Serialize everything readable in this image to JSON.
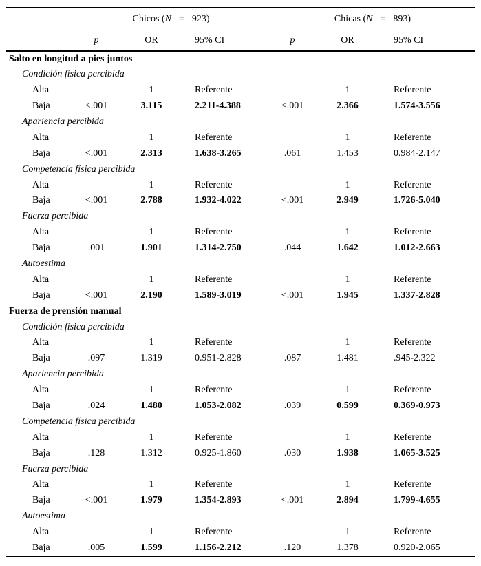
{
  "colors": {
    "background": "#ffffff",
    "text": "#000000",
    "rule": "#000000"
  },
  "header": {
    "groups": [
      {
        "prefix": "Chicos (",
        "n": "N",
        "eq": "=",
        "value": "923)"
      },
      {
        "prefix": "Chicas (",
        "n": "N",
        "eq": "=",
        "value": "893)"
      }
    ],
    "columns": [
      "p",
      "OR",
      "95% CI",
      "p",
      "OR",
      "95% CI"
    ]
  },
  "rows": [
    {
      "type": "section",
      "label": "Salto en longitud a pies juntos"
    },
    {
      "type": "subsection",
      "label": "Condición física percibida"
    },
    {
      "type": "data",
      "label": "Alta",
      "cells": [
        "",
        "1",
        "Referente",
        "",
        "1",
        "Referente"
      ],
      "bold": [
        false,
        false,
        false,
        false,
        false,
        false
      ]
    },
    {
      "type": "data",
      "label": "Baja",
      "cells": [
        "<.001",
        "3.115",
        "2.211-4.388",
        "<.001",
        "2.366",
        "1.574-3.556"
      ],
      "bold": [
        false,
        true,
        true,
        false,
        true,
        true
      ]
    },
    {
      "type": "subsection",
      "label": "Apariencia percibida"
    },
    {
      "type": "data",
      "label": "Alta",
      "cells": [
        "",
        "1",
        "Referente",
        "",
        "1",
        "Referente"
      ],
      "bold": [
        false,
        false,
        false,
        false,
        false,
        false
      ]
    },
    {
      "type": "data",
      "label": "Baja",
      "cells": [
        "<.001",
        "2.313",
        "1.638-3.265",
        ".061",
        "1.453",
        "0.984-2.147"
      ],
      "bold": [
        false,
        true,
        true,
        false,
        false,
        false
      ]
    },
    {
      "type": "subsection",
      "label": "Competencia física percibida"
    },
    {
      "type": "data",
      "label": "Alta",
      "cells": [
        "",
        "1",
        "Referente",
        "",
        "1",
        "Referente"
      ],
      "bold": [
        false,
        false,
        false,
        false,
        false,
        false
      ]
    },
    {
      "type": "data",
      "label": "Baja",
      "cells": [
        "<.001",
        "2.788",
        "1.932-4.022",
        "<.001",
        "2.949",
        "1.726-5.040"
      ],
      "bold": [
        false,
        true,
        true,
        false,
        true,
        true
      ]
    },
    {
      "type": "subsection",
      "label": "Fuerza percibida"
    },
    {
      "type": "data",
      "label": "Alta",
      "cells": [
        "",
        "1",
        "Referente",
        "",
        "1",
        "Referente"
      ],
      "bold": [
        false,
        false,
        false,
        false,
        false,
        false
      ]
    },
    {
      "type": "data",
      "label": "Baja",
      "cells": [
        ".001",
        "1.901",
        "1.314-2.750",
        ".044",
        "1.642",
        "1.012-2.663"
      ],
      "bold": [
        false,
        true,
        true,
        false,
        true,
        true
      ]
    },
    {
      "type": "subsection",
      "label": "Autoestima"
    },
    {
      "type": "data",
      "label": "Alta",
      "cells": [
        "",
        "1",
        "Referente",
        "",
        "1",
        "Referente"
      ],
      "bold": [
        false,
        false,
        false,
        false,
        false,
        false
      ]
    },
    {
      "type": "data",
      "label": "Baja",
      "cells": [
        "<.001",
        "2.190",
        "1.589-3.019",
        "<.001",
        "1.945",
        "1.337-2.828"
      ],
      "bold": [
        false,
        true,
        true,
        false,
        true,
        true
      ]
    },
    {
      "type": "section",
      "label": "Fuerza de prensión manual"
    },
    {
      "type": "subsection",
      "label": "Condición física percibida"
    },
    {
      "type": "data",
      "label": "Alta",
      "cells": [
        "",
        "1",
        "Referente",
        "",
        "1",
        "Referente"
      ],
      "bold": [
        false,
        false,
        false,
        false,
        false,
        false
      ]
    },
    {
      "type": "data",
      "label": "Baja",
      "cells": [
        ".097",
        "1.319",
        "0.951-2.828",
        ".087",
        "1.481",
        ".945-2.322"
      ],
      "bold": [
        false,
        false,
        false,
        false,
        false,
        false
      ]
    },
    {
      "type": "subsection",
      "label": "Apariencia percibida"
    },
    {
      "type": "data",
      "label": "Alta",
      "cells": [
        "",
        "1",
        "Referente",
        "",
        "1",
        "Referente"
      ],
      "bold": [
        false,
        false,
        false,
        false,
        false,
        false
      ]
    },
    {
      "type": "data",
      "label": "Baja",
      "cells": [
        ".024",
        "1.480",
        "1.053-2.082",
        ".039",
        "0.599",
        "0.369-0.973"
      ],
      "bold": [
        false,
        true,
        true,
        false,
        true,
        true
      ]
    },
    {
      "type": "subsection",
      "label": "Competencia física percibida"
    },
    {
      "type": "data",
      "label": "Alta",
      "cells": [
        "",
        "1",
        "Referente",
        "",
        "1",
        "Referente"
      ],
      "bold": [
        false,
        false,
        false,
        false,
        false,
        false
      ]
    },
    {
      "type": "data",
      "label": "Baja",
      "cells": [
        ".128",
        "1.312",
        "0.925-1.860",
        ".030",
        "1.938",
        "1.065-3.525"
      ],
      "bold": [
        false,
        false,
        false,
        false,
        true,
        true
      ]
    },
    {
      "type": "subsection",
      "label": "Fuerza percibida"
    },
    {
      "type": "data",
      "label": "Alta",
      "cells": [
        "",
        "1",
        "Referente",
        "",
        "1",
        "Referente"
      ],
      "bold": [
        false,
        false,
        false,
        false,
        false,
        false
      ]
    },
    {
      "type": "data",
      "label": "Baja",
      "cells": [
        "<.001",
        "1.979",
        "1.354-2.893",
        "<.001",
        "2.894",
        "1.799-4.655"
      ],
      "bold": [
        false,
        true,
        true,
        false,
        true,
        true
      ]
    },
    {
      "type": "subsection",
      "label": "Autoestima"
    },
    {
      "type": "data",
      "label": "Alta",
      "cells": [
        "",
        "1",
        "Referente",
        "",
        "1",
        "Referente"
      ],
      "bold": [
        false,
        false,
        false,
        false,
        false,
        false
      ]
    },
    {
      "type": "data",
      "label": "Baja",
      "cells": [
        ".005",
        "1.599",
        "1.156-2.212",
        ".120",
        "1.378",
        "0.920-2.065"
      ],
      "bold": [
        false,
        true,
        true,
        false,
        false,
        false
      ]
    }
  ]
}
